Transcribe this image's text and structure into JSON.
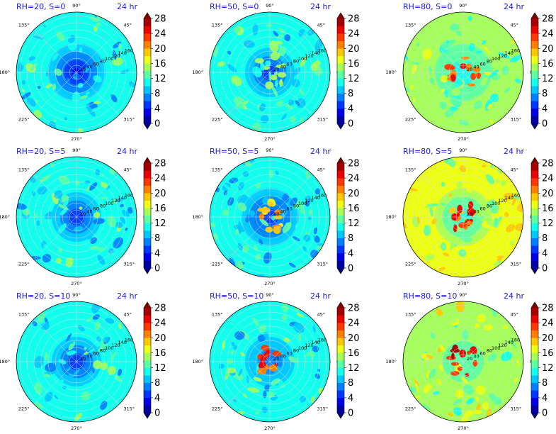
{
  "chart_data": {
    "type": "heatmap",
    "projection": "polar",
    "time_label": "24 hr",
    "angle_ticks": [
      "90°",
      "45°",
      "0°",
      "315°",
      "270°",
      "225°",
      "180°",
      "135°"
    ],
    "angle_tick_degrees": [
      90,
      45,
      0,
      315,
      270,
      225,
      180,
      135
    ],
    "radial_ticks": [
      20,
      40,
      60,
      80,
      100,
      120,
      140,
      160
    ],
    "radial_tick_label_angle_deg": 22.5,
    "rmax": 170,
    "colorbar": {
      "min": 0,
      "max": 28,
      "step": 2,
      "tick_labels": [
        "0",
        "4",
        "8",
        "12",
        "16",
        "20",
        "24",
        "28"
      ],
      "tick_values": [
        0,
        4,
        8,
        12,
        16,
        20,
        24,
        28
      ],
      "colormap": "jet",
      "extend": "both"
    },
    "panels": [
      {
        "title": "RH=20, S=0",
        "rh": 20,
        "s": 0,
        "background_level": 11,
        "center_level": 2,
        "hotspot_level": null
      },
      {
        "title": "RH=50, S=0",
        "rh": 50,
        "s": 0,
        "background_level": 11,
        "center_level": 4,
        "hotspot_level": 16
      },
      {
        "title": "RH=80, S=0",
        "rh": 80,
        "s": 0,
        "background_level": 14,
        "center_level": 10,
        "hotspot_level": 26
      },
      {
        "title": "RH=20, S=5",
        "rh": 20,
        "s": 5,
        "background_level": 11,
        "center_level": 3,
        "hotspot_level": null
      },
      {
        "title": "RH=50, S=5",
        "rh": 50,
        "s": 5,
        "background_level": 10,
        "center_level": 4,
        "hotspot_level": 22
      },
      {
        "title": "RH=80, S=5",
        "rh": 80,
        "s": 5,
        "background_level": 16,
        "center_level": 10,
        "hotspot_level": 26
      },
      {
        "title": "RH=20, S=10",
        "rh": 20,
        "s": 10,
        "background_level": 11,
        "center_level": 3,
        "hotspot_level": null
      },
      {
        "title": "RH=50, S=10",
        "rh": 50,
        "s": 10,
        "background_level": 11,
        "center_level": 6,
        "hotspot_level": 26
      },
      {
        "title": "RH=80, S=10",
        "rh": 80,
        "s": 10,
        "background_level": 15,
        "center_level": 12,
        "hotspot_level": 28
      }
    ]
  }
}
